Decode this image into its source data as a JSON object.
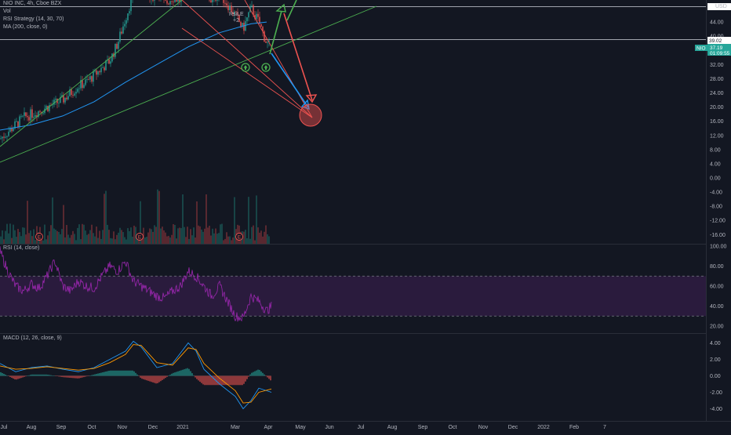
{
  "chart_data": {
    "type": "candlestick",
    "symbol_line": "NIO INC, 4h, Cboe BZX",
    "currency": "USD",
    "legends": {
      "volume": "Vol",
      "strategy": "RSI Strategy (14, 30, 70)",
      "ma": "MA (200, close, 0)",
      "rsi": "RSI (14, close)",
      "macd": "MACD (12, 26, close, 9)"
    },
    "price_axis": {
      "ticks": [
        "44.00",
        "40.00",
        "36.00",
        "32.00",
        "28.00",
        "24.00",
        "20.00",
        "16.00",
        "12.00",
        "8.00",
        "4.00",
        "0.00",
        "-4.00",
        "-8.00",
        "-12.00",
        "-16.00"
      ],
      "ticks_numeric": [
        44,
        40,
        36,
        32,
        28,
        24,
        20,
        16,
        12,
        8,
        4,
        0,
        -4,
        -8,
        -12,
        -16
      ],
      "horizontal_level": "39.02",
      "last_price": "37.19",
      "last_price_symbol": "NIO",
      "countdown": "01:09:55"
    },
    "rsi_axis": {
      "ticks": [
        "100.00",
        "80.00",
        "60.00",
        "40.00",
        "20.00"
      ],
      "overbought": 70,
      "oversold": 30
    },
    "macd_axis": {
      "ticks": [
        "4.00",
        "2.00",
        "0.00",
        "-2.00",
        "-4.00"
      ]
    },
    "time_axis": [
      "Jul",
      "Aug",
      "Sep",
      "Oct",
      "Nov",
      "Dec",
      "2021",
      "Mar",
      "Apr",
      "May",
      "Jun",
      "Jul",
      "Aug",
      "Sep",
      "Oct",
      "Nov",
      "Dec",
      "2022",
      "Feb",
      "7"
    ],
    "annotations": {
      "strategy_signal": "RsiLE",
      "strategy_qty": "+2",
      "event_marker": "E"
    },
    "price_path": [
      [
        0,
        11
      ],
      [
        10,
        13
      ],
      [
        20,
        15
      ],
      [
        30,
        17
      ],
      [
        40,
        18
      ],
      [
        50,
        19
      ],
      [
        60,
        20
      ],
      [
        70,
        21
      ],
      [
        80,
        22
      ],
      [
        90,
        24
      ],
      [
        100,
        26
      ],
      [
        110,
        27
      ],
      [
        120,
        29
      ],
      [
        130,
        31
      ],
      [
        140,
        33
      ],
      [
        150,
        38
      ],
      [
        160,
        45
      ],
      [
        170,
        52
      ],
      [
        180,
        55
      ],
      [
        190,
        50
      ],
      [
        200,
        53
      ],
      [
        210,
        49
      ],
      [
        220,
        51
      ],
      [
        230,
        50
      ],
      [
        240,
        53
      ],
      [
        250,
        55
      ],
      [
        260,
        52
      ],
      [
        270,
        50
      ],
      [
        280,
        52
      ],
      [
        290,
        49
      ],
      [
        300,
        46
      ],
      [
        310,
        42
      ],
      [
        320,
        48
      ],
      [
        330,
        44
      ],
      [
        340,
        38
      ],
      [
        346,
        37.19
      ]
    ],
    "ma_path": [
      [
        0,
        13.5
      ],
      [
        40,
        15
      ],
      [
        80,
        17.5
      ],
      [
        120,
        21.5
      ],
      [
        160,
        27
      ],
      [
        200,
        32
      ],
      [
        240,
        37
      ],
      [
        280,
        41
      ],
      [
        320,
        43.5
      ],
      [
        340,
        44
      ]
    ],
    "rsi_path": [
      [
        0,
        95
      ],
      [
        10,
        75
      ],
      [
        20,
        60
      ],
      [
        30,
        55
      ],
      [
        40,
        62
      ],
      [
        50,
        58
      ],
      [
        60,
        70
      ],
      [
        70,
        85
      ],
      [
        80,
        60
      ],
      [
        90,
        55
      ],
      [
        100,
        65
      ],
      [
        110,
        60
      ],
      [
        120,
        58
      ],
      [
        130,
        70
      ],
      [
        140,
        80
      ],
      [
        150,
        75
      ],
      [
        160,
        85
      ],
      [
        170,
        65
      ],
      [
        180,
        60
      ],
      [
        190,
        55
      ],
      [
        200,
        50
      ],
      [
        210,
        48
      ],
      [
        220,
        55
      ],
      [
        230,
        60
      ],
      [
        240,
        75
      ],
      [
        250,
        70
      ],
      [
        260,
        60
      ],
      [
        270,
        50
      ],
      [
        280,
        60
      ],
      [
        290,
        45
      ],
      [
        300,
        30
      ],
      [
        310,
        28
      ],
      [
        320,
        50
      ],
      [
        330,
        45
      ],
      [
        340,
        35
      ],
      [
        346,
        40
      ]
    ],
    "macd_path": [
      [
        0,
        1.5
      ],
      [
        20,
        0.5
      ],
      [
        40,
        1.0
      ],
      [
        60,
        1.2
      ],
      [
        80,
        0.8
      ],
      [
        100,
        0.5
      ],
      [
        120,
        1.0
      ],
      [
        140,
        2.0
      ],
      [
        160,
        3.0
      ],
      [
        170,
        4.2
      ],
      [
        180,
        3.5
      ],
      [
        200,
        1.0
      ],
      [
        220,
        1.5
      ],
      [
        240,
        4.0
      ],
      [
        250,
        3.0
      ],
      [
        260,
        0.8
      ],
      [
        280,
        -1.0
      ],
      [
        300,
        -2.5
      ],
      [
        310,
        -4.0
      ],
      [
        320,
        -3.0
      ],
      [
        330,
        -1.5
      ],
      [
        346,
        -2.0
      ]
    ],
    "signal_path": [
      [
        0,
        1.2
      ],
      [
        20,
        0.8
      ],
      [
        40,
        0.9
      ],
      [
        60,
        1.1
      ],
      [
        80,
        0.9
      ],
      [
        100,
        0.7
      ],
      [
        120,
        0.9
      ],
      [
        140,
        1.6
      ],
      [
        160,
        2.6
      ],
      [
        170,
        3.8
      ],
      [
        180,
        3.7
      ],
      [
        200,
        1.6
      ],
      [
        220,
        1.3
      ],
      [
        240,
        3.4
      ],
      [
        250,
        3.2
      ],
      [
        260,
        1.5
      ],
      [
        280,
        -0.3
      ],
      [
        300,
        -1.8
      ],
      [
        310,
        -3.3
      ],
      [
        320,
        -3.2
      ],
      [
        330,
        -2.0
      ],
      [
        346,
        -1.6
      ]
    ],
    "colors": {
      "background": "#131722",
      "up": "#26a69a",
      "down": "#ef5350",
      "ma": "#2196f3",
      "trendline": "#4caf50",
      "rsi": "#9c27b0",
      "rsi_band": "#2a1b3d",
      "macd": "#2196f3",
      "signal": "#ff9800"
    }
  }
}
